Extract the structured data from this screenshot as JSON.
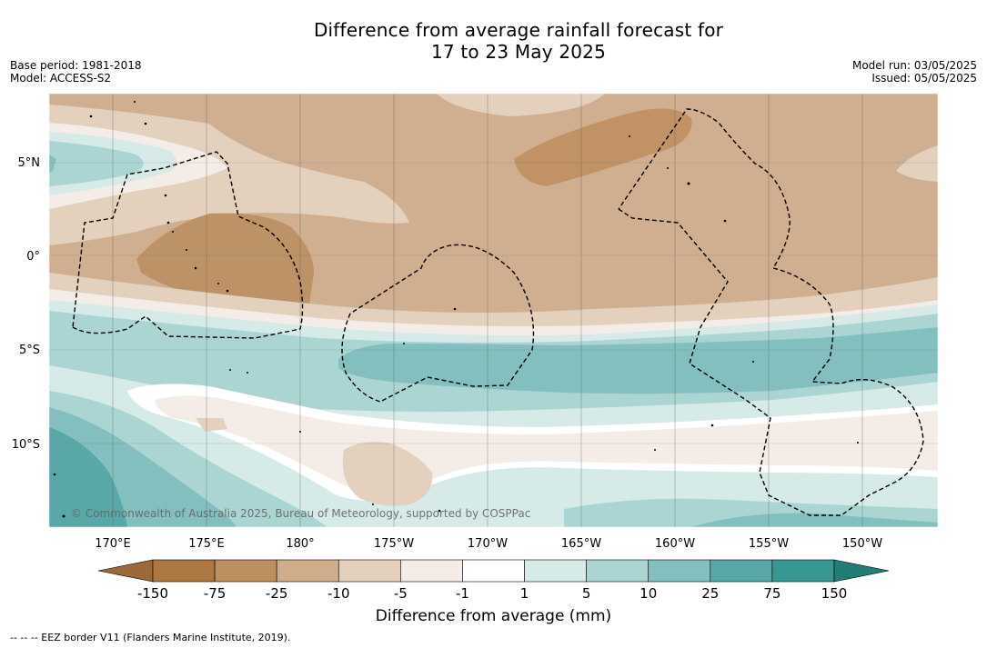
{
  "title": {
    "line1": "Difference from average rainfall forecast for",
    "line2": "17 to 23 May 2025"
  },
  "meta_left": {
    "base_period": "Base period: 1981-2018",
    "model": "Model: ACCESS-S2"
  },
  "meta_right": {
    "model_run": "Model run: 03/05/2025",
    "issued": "Issued: 05/05/2025"
  },
  "latitude_labels": [
    "5°N",
    "0°",
    "5°S",
    "10°S"
  ],
  "longitude_labels": [
    "170°E",
    "175°E",
    "180°",
    "175°W",
    "170°W",
    "165°W",
    "160°W",
    "155°W",
    "150°W"
  ],
  "colorbar": {
    "ticks": [
      "-150",
      "-75",
      "-25",
      "-10",
      "-5",
      "-1",
      "1",
      "5",
      "10",
      "25",
      "75",
      "150"
    ],
    "colors": [
      "#9c6a38",
      "#ad7842",
      "#bd915f",
      "#cfac8a",
      "#e3cfbb",
      "#f4ece6",
      "#ffffff",
      "#d6eae8",
      "#abd5d3",
      "#83bfbf",
      "#59a8a8",
      "#379792",
      "#237d77"
    ],
    "label": "Difference from average (mm)"
  },
  "copyright": "© Commonwealth of Australia 2025, Bureau of Meteorology, supported by COSPPac",
  "footnote": "-- -- -- EEZ border V11 (Flanders Marine Institute, 2019)."
}
